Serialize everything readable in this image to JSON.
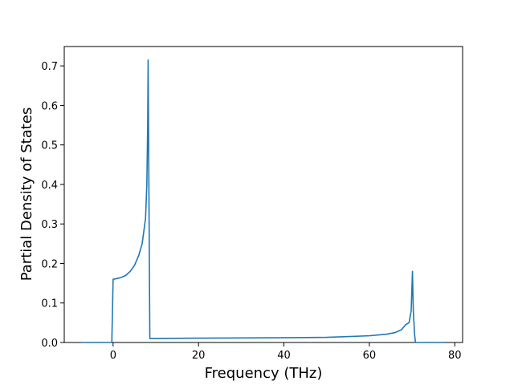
{
  "chart_data": {
    "type": "line",
    "xlabel": "Frequency (THz)",
    "ylabel": "Partial Density of States",
    "x": [
      -7.2,
      -0.3,
      0,
      1,
      2,
      3,
      4,
      5,
      6,
      6.8,
      7.3,
      7.6,
      7.9,
      8.1,
      8.2,
      8.6,
      9,
      20,
      40,
      50,
      60,
      64,
      66,
      67.5,
      68.5,
      69.3,
      69.8,
      70.1,
      70.3,
      70.6,
      70.8,
      77.6
    ],
    "series": [
      {
        "color": "#1f77b4",
        "values": [
          0,
          0,
          0.16,
          0.162,
          0.165,
          0.17,
          0.18,
          0.195,
          0.22,
          0.25,
          0.29,
          0.315,
          0.4,
          0.55,
          0.715,
          0.01,
          0.01,
          0.011,
          0.012,
          0.013,
          0.017,
          0.021,
          0.025,
          0.032,
          0.045,
          0.05,
          0.08,
          0.18,
          0.08,
          0.02,
          0,
          0
        ]
      }
    ],
    "xlim": [
      -11.44,
      81.84
    ],
    "ylim": [
      0,
      0.749
    ],
    "xticks": [
      0,
      20,
      40,
      60,
      80
    ],
    "yticks": [
      {
        "value": 0,
        "label": "0.0"
      },
      0.1,
      0.2,
      0.3,
      0.4,
      0.5,
      0.6,
      0.7
    ]
  }
}
